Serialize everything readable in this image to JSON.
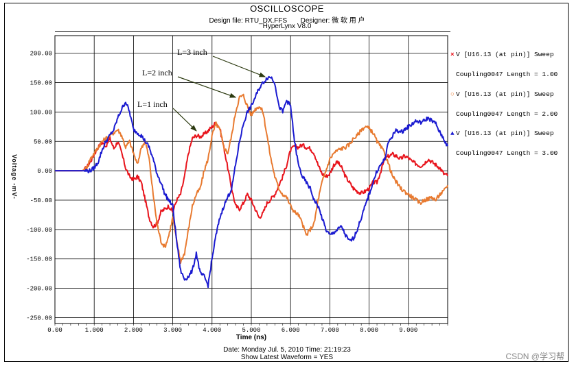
{
  "header": {
    "title": "OSCILLOSCOPE",
    "design_file_label": "Design file: RTU_DX.FFS",
    "designer_label": "Designer: 微 软 用 户",
    "version": "HyperLynx V8.0"
  },
  "footer": {
    "date_time": "Date: Monday Jul. 5, 2010   Time: 21:19:23",
    "show_latest": "Show Latest Waveform = YES"
  },
  "watermark": "CSDN @学习帮",
  "legend": [
    {
      "marker": "×",
      "line1": "V [U16.13 (at pin)] Sweep",
      "line2": "Coupling0047 Length = 1.00",
      "color": "#e8141c"
    },
    {
      "marker": "○",
      "line1": "V [U16.13 (at pin)] Sweep",
      "line2": "Coupling0047 Length = 2.00",
      "color": "#e87a30"
    },
    {
      "marker": "▲",
      "line1": "V [U16.13 (at pin)] Sweep",
      "line2": "Coupling0047 Length = 3.00",
      "color": "#1a1ad0"
    }
  ],
  "chart_data": {
    "type": "line",
    "xlabel": "Time  (ns)",
    "ylabel": "Voltage -mV-",
    "xlim": [
      0,
      10
    ],
    "ylim": [
      -260,
      230
    ],
    "grid": true,
    "xticks": [
      0,
      1,
      2,
      3,
      4,
      5,
      6,
      7,
      8,
      9
    ],
    "xtick_labels": [
      "0.00",
      "1.000",
      "2.000",
      "3.000",
      "4.000",
      "5.000",
      "6.000",
      "7.000",
      "8.000",
      "9.000"
    ],
    "yticks": [
      200,
      150,
      100,
      50,
      0,
      -50,
      -100,
      -150,
      -200,
      -250
    ],
    "ytick_labels": [
      "200.00",
      "150.00",
      "100.00",
      "50.00",
      "0.00",
      "-50.00",
      "-100.00",
      "-150.00",
      "-200.00",
      "-250.00"
    ],
    "annotations": [
      {
        "text": "L=1 inch",
        "x": 3.6,
        "y": 68
      },
      {
        "text": "L=2 inch",
        "x": 4.6,
        "y": 125
      },
      {
        "text": "L=3 inch",
        "x": 5.35,
        "y": 160
      }
    ],
    "series": [
      {
        "color": "#e8141c",
        "x": [
          0,
          0.7,
          0.8,
          0.9,
          1.0,
          1.1,
          1.2,
          1.3,
          1.4,
          1.5,
          1.6,
          1.7,
          1.8,
          1.9,
          2.0,
          2.1,
          2.2,
          2.3,
          2.4,
          2.5,
          2.6,
          2.7,
          2.8,
          2.9,
          3.0,
          3.1,
          3.2,
          3.3,
          3.4,
          3.5,
          3.6,
          3.7,
          3.8,
          3.9,
          4.0,
          4.1,
          4.2,
          4.3,
          4.4,
          4.5,
          4.6,
          4.7,
          4.8,
          4.9,
          5.0,
          5.1,
          5.2,
          5.3,
          5.4,
          5.5,
          5.6,
          5.7,
          5.8,
          5.9,
          6.0,
          6.1,
          6.2,
          6.3,
          6.4,
          6.5,
          6.6,
          6.7,
          6.8,
          6.9,
          7.0,
          7.1,
          7.2,
          7.3,
          7.4,
          7.5,
          7.6,
          7.7,
          7.8,
          7.9,
          8.0,
          8.1,
          8.2,
          8.3,
          8.4,
          8.5,
          8.6,
          8.7,
          8.8,
          8.9,
          9.0,
          9.1,
          9.2,
          9.3,
          9.4,
          9.5,
          9.6,
          9.7,
          9.8,
          9.9,
          10.0
        ],
        "values": [
          0,
          0,
          5,
          15,
          28,
          40,
          48,
          42,
          55,
          38,
          50,
          30,
          5,
          -10,
          -15,
          -10,
          -20,
          -50,
          -80,
          -95,
          -90,
          -70,
          -65,
          -60,
          -70,
          -50,
          -40,
          -10,
          30,
          55,
          60,
          58,
          62,
          68,
          75,
          82,
          72,
          40,
          5,
          -30,
          -60,
          -65,
          -55,
          -40,
          -50,
          -65,
          -80,
          -72,
          -55,
          -48,
          -40,
          -25,
          -10,
          10,
          35,
          42,
          40,
          44,
          40,
          38,
          30,
          10,
          -5,
          -10,
          -5,
          10,
          15,
          5,
          -10,
          -20,
          -30,
          -35,
          -38,
          -35,
          -30,
          -20,
          -20,
          0,
          20,
          25,
          28,
          25,
          20,
          25,
          22,
          15,
          12,
          8,
          12,
          20,
          15,
          10,
          5,
          -5,
          -8
        ]
      },
      {
        "color": "#e87a30",
        "x": [
          0,
          0.7,
          0.8,
          0.9,
          1.0,
          1.1,
          1.2,
          1.3,
          1.4,
          1.5,
          1.6,
          1.7,
          1.8,
          1.9,
          2.0,
          2.1,
          2.2,
          2.3,
          2.4,
          2.5,
          2.6,
          2.7,
          2.8,
          2.9,
          3.0,
          3.1,
          3.2,
          3.3,
          3.4,
          3.5,
          3.6,
          3.7,
          3.8,
          3.9,
          4.0,
          4.1,
          4.2,
          4.3,
          4.4,
          4.5,
          4.6,
          4.7,
          4.8,
          4.9,
          5.0,
          5.1,
          5.2,
          5.3,
          5.4,
          5.5,
          5.6,
          5.7,
          5.8,
          5.9,
          6.0,
          6.1,
          6.2,
          6.3,
          6.4,
          6.5,
          6.6,
          6.7,
          6.8,
          6.9,
          7.0,
          7.1,
          7.2,
          7.3,
          7.4,
          7.5,
          7.6,
          7.7,
          7.8,
          7.9,
          8.0,
          8.1,
          8.2,
          8.3,
          8.4,
          8.5,
          8.6,
          8.7,
          8.8,
          8.9,
          9.0,
          9.1,
          9.2,
          9.3,
          9.4,
          9.5,
          9.6,
          9.7,
          9.8,
          9.9,
          10.0
        ],
        "values": [
          0,
          0,
          5,
          20,
          30,
          40,
          50,
          55,
          60,
          65,
          70,
          60,
          40,
          50,
          30,
          10,
          40,
          50,
          20,
          -40,
          -90,
          -120,
          -130,
          -110,
          -80,
          -120,
          -155,
          -140,
          -100,
          -60,
          -40,
          -30,
          0,
          20,
          60,
          80,
          70,
          40,
          30,
          60,
          100,
          125,
          128,
          110,
          95,
          105,
          110,
          100,
          60,
          20,
          -10,
          -30,
          -40,
          -45,
          -60,
          -70,
          -75,
          -90,
          -110,
          -100,
          -90,
          -50,
          -20,
          0,
          20,
          30,
          35,
          38,
          40,
          45,
          55,
          60,
          70,
          75,
          72,
          65,
          50,
          40,
          30,
          10,
          -10,
          -20,
          -30,
          -35,
          -40,
          -45,
          -50,
          -55,
          -50,
          -48,
          -45,
          -50,
          -40,
          -35,
          -25
        ]
      },
      {
        "color": "#1a1ad0",
        "x": [
          0,
          0.7,
          0.8,
          0.9,
          1.0,
          1.1,
          1.2,
          1.3,
          1.4,
          1.5,
          1.6,
          1.7,
          1.8,
          1.9,
          2.0,
          2.1,
          2.2,
          2.3,
          2.4,
          2.5,
          2.6,
          2.7,
          2.8,
          2.9,
          3.0,
          3.1,
          3.2,
          3.3,
          3.4,
          3.5,
          3.6,
          3.7,
          3.8,
          3.9,
          4.0,
          4.1,
          4.2,
          4.3,
          4.4,
          4.5,
          4.6,
          4.7,
          4.8,
          4.9,
          5.0,
          5.1,
          5.2,
          5.3,
          5.4,
          5.5,
          5.6,
          5.7,
          5.8,
          5.9,
          6.0,
          6.1,
          6.2,
          6.3,
          6.4,
          6.5,
          6.6,
          6.7,
          6.8,
          6.9,
          7.0,
          7.1,
          7.2,
          7.3,
          7.4,
          7.5,
          7.6,
          7.7,
          7.8,
          7.9,
          8.0,
          8.1,
          8.2,
          8.3,
          8.4,
          8.5,
          8.6,
          8.7,
          8.8,
          8.9,
          9.0,
          9.1,
          9.2,
          9.3,
          9.4,
          9.5,
          9.6,
          9.7,
          9.8,
          9.9,
          10.0
        ],
        "values": [
          0,
          0,
          0,
          0,
          5,
          15,
          35,
          50,
          60,
          70,
          90,
          105,
          118,
          100,
          70,
          65,
          60,
          50,
          40,
          20,
          -5,
          -20,
          -40,
          -50,
          -60,
          -120,
          -170,
          -185,
          -180,
          -170,
          -140,
          -175,
          -180,
          -195,
          -150,
          -110,
          -80,
          -60,
          -45,
          -30,
          10,
          50,
          80,
          100,
          110,
          125,
          140,
          150,
          158,
          160,
          150,
          110,
          100,
          120,
          110,
          50,
          10,
          -10,
          -20,
          -30,
          -50,
          -60,
          -80,
          -100,
          -110,
          -105,
          -100,
          -95,
          -110,
          -120,
          -115,
          -100,
          -80,
          -60,
          -40,
          -20,
          0,
          10,
          20,
          50,
          60,
          70,
          65,
          70,
          75,
          80,
          85,
          82,
          85,
          90,
          85,
          80,
          65,
          55,
          40
        ]
      }
    ]
  }
}
